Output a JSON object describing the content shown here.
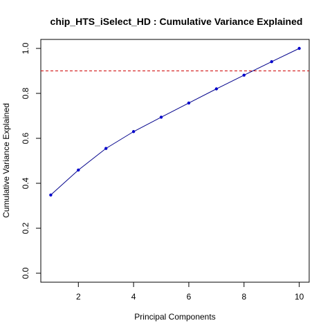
{
  "chart_data": {
    "type": "line",
    "title": "chip_HTS_iSelect_HD : Cumulative Variance Explained",
    "xlabel": "Principal Components",
    "ylabel": "Cumulative Variance Explained",
    "x": [
      1,
      2,
      3,
      4,
      5,
      6,
      7,
      8,
      9,
      10
    ],
    "series": [
      {
        "values": [
          0.348,
          0.459,
          0.555,
          0.63,
          0.694,
          0.757,
          0.82,
          0.881,
          0.941,
          1.0
        ],
        "color": "#0000cd",
        "line_color": "#00008b"
      }
    ],
    "xlim": [
      1,
      10
    ],
    "ylim": [
      0,
      1
    ],
    "x_ticks": [
      2,
      4,
      6,
      8,
      10
    ],
    "x_tick_labels": [
      "2",
      "4",
      "6",
      "8",
      "10"
    ],
    "y_ticks": [
      0.0,
      0.2,
      0.4,
      0.6,
      0.8,
      1.0
    ],
    "y_tick_labels": [
      "0.0",
      "0.2",
      "0.4",
      "0.6",
      "0.8",
      "1.0"
    ],
    "reference_line": {
      "y": 0.9,
      "color": "#cd0000",
      "style": "dashed"
    },
    "grid": false,
    "legend": "none"
  }
}
